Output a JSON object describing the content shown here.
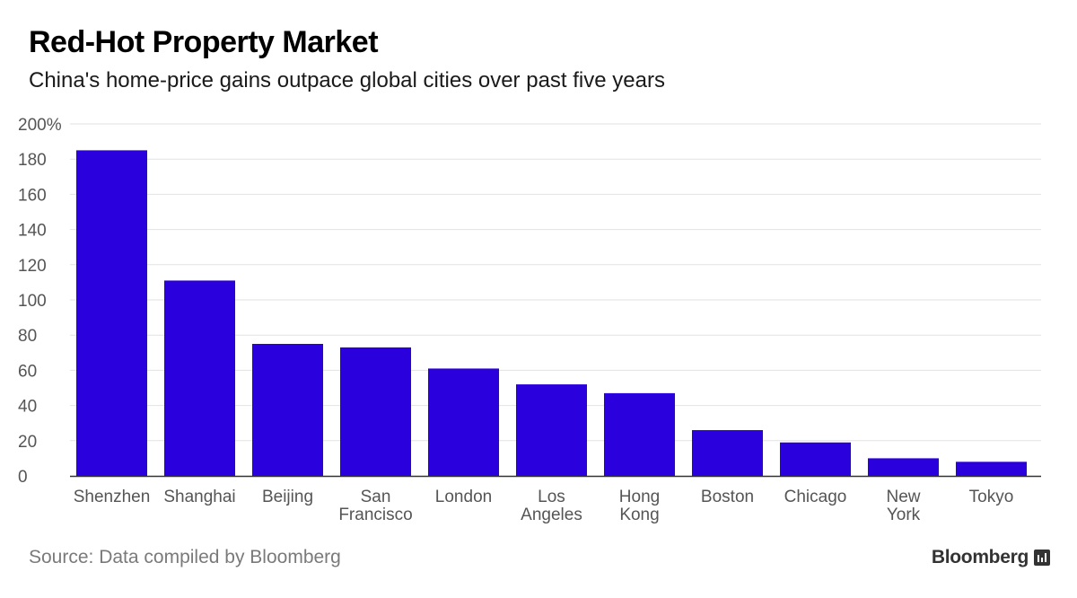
{
  "header": {
    "title": "Red-Hot Property Market",
    "subtitle": "China's home-price gains outpace global cities over past five years"
  },
  "footer": {
    "source": "Source: Data compiled by Bloomberg",
    "brand": "Bloomberg"
  },
  "colors": {
    "bar": "#2a00dd",
    "grid": "#e2e2e2",
    "axis": "#333333",
    "tick_text": "#555555"
  },
  "chart_data": {
    "type": "bar",
    "title": "Red-Hot Property Market",
    "subtitle": "China's home-price gains outpace global cities over past five years",
    "categories": [
      [
        "Shenzhen"
      ],
      [
        "Shanghai"
      ],
      [
        "Beijing"
      ],
      [
        "San",
        "Francisco"
      ],
      [
        "London"
      ],
      [
        "Los",
        "Angeles"
      ],
      [
        "Hong",
        "Kong"
      ],
      [
        "Boston"
      ],
      [
        "Chicago"
      ],
      [
        "New",
        "York"
      ],
      [
        "Tokyo"
      ]
    ],
    "values": [
      185,
      111,
      75,
      73,
      61,
      52,
      47,
      26,
      19,
      10,
      8
    ],
    "ylim": [
      0,
      200
    ],
    "yticks": [
      0,
      20,
      40,
      60,
      80,
      100,
      120,
      140,
      160,
      180,
      200
    ],
    "ytick_labels": [
      "0",
      "20",
      "40",
      "60",
      "80",
      "100",
      "120",
      "140",
      "160",
      "180",
      "200%"
    ],
    "xlabel": "",
    "ylabel": "",
    "grid": true,
    "legend": "none"
  }
}
